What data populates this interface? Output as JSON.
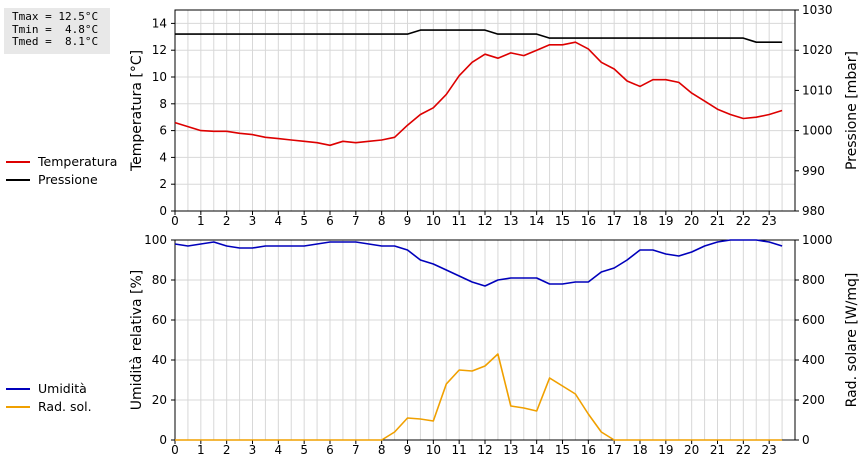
{
  "stats": {
    "tmax": "Tmax = 12.5°C",
    "tmin": "Tmin =  4.8°C",
    "tmed": "Tmed =  8.1°C"
  },
  "legend_top": [
    {
      "label": "Temperatura",
      "color": "#dd0000"
    },
    {
      "label": "Pressione",
      "color": "#000000"
    }
  ],
  "legend_bottom": [
    {
      "label": "Umidità",
      "color": "#0000bb"
    },
    {
      "label": "Rad. sol.",
      "color": "#f0a000"
    }
  ],
  "chart_data": [
    {
      "type": "line",
      "xlabel": "",
      "x_ticks": [
        "0",
        "1",
        "2",
        "3",
        "4",
        "5",
        "6",
        "7",
        "8",
        "9",
        "10",
        "11",
        "12",
        "13",
        "14",
        "15",
        "16",
        "17",
        "18",
        "19",
        "20",
        "21",
        "22",
        "23"
      ],
      "xlim": [
        0,
        24
      ],
      "grid": true,
      "left_axis": {
        "label": "Temperatura [°C]",
        "ylim": [
          0,
          15
        ],
        "ticks": [
          0,
          2,
          4,
          6,
          8,
          10,
          12,
          14
        ]
      },
      "right_axis": {
        "label": "Pressione [mbar]",
        "ylim": [
          980,
          1030
        ],
        "ticks": [
          980,
          990,
          1000,
          1010,
          1020,
          1030
        ]
      },
      "series": [
        {
          "name": "Temperatura",
          "axis": "left",
          "color": "#dd0000",
          "x": [
            0,
            0.5,
            1,
            1.5,
            2,
            2.5,
            3,
            3.5,
            4,
            4.5,
            5,
            5.5,
            6,
            6.5,
            7,
            7.5,
            8,
            8.5,
            9,
            9.5,
            10,
            10.5,
            11,
            11.5,
            12,
            12.5,
            13,
            13.5,
            14,
            14.5,
            15,
            15.5,
            16,
            16.5,
            17,
            17.5,
            18,
            18.5,
            19,
            19.5,
            20,
            20.5,
            21,
            21.5,
            22,
            22.5,
            23,
            23.5
          ],
          "values": [
            6.6,
            6.3,
            6.0,
            5.95,
            5.95,
            5.8,
            5.7,
            5.5,
            5.4,
            5.3,
            5.2,
            5.1,
            4.9,
            5.2,
            5.1,
            5.2,
            5.3,
            5.5,
            6.4,
            7.2,
            7.7,
            8.7,
            10.1,
            11.1,
            11.7,
            11.4,
            11.8,
            11.6,
            12.0,
            12.4,
            12.4,
            12.6,
            12.1,
            11.1,
            10.6,
            9.7,
            9.3,
            9.8,
            9.8,
            9.6,
            8.8,
            8.2,
            7.6,
            7.2,
            6.9,
            7.0,
            7.2,
            7.5
          ]
        },
        {
          "name": "Pressione",
          "axis": "right",
          "color": "#000000",
          "x": [
            0,
            9.0,
            9.5,
            12.0,
            12.5,
            14.0,
            14.5,
            22.0,
            22.5,
            23.5
          ],
          "values": [
            1024.0,
            1024.0,
            1025.0,
            1025.0,
            1024.0,
            1024.0,
            1023.0,
            1023.0,
            1022.0,
            1022.0
          ]
        }
      ]
    },
    {
      "type": "line",
      "xlabel": "",
      "x_ticks": [
        "0",
        "1",
        "2",
        "3",
        "4",
        "5",
        "6",
        "7",
        "8",
        "9",
        "10",
        "11",
        "12",
        "13",
        "14",
        "15",
        "16",
        "17",
        "18",
        "19",
        "20",
        "21",
        "22",
        "23"
      ],
      "xlim": [
        0,
        24
      ],
      "grid": true,
      "left_axis": {
        "label": "Umidità relativa [%]",
        "ylim": [
          0,
          100
        ],
        "ticks": [
          0,
          20,
          40,
          60,
          80,
          100
        ]
      },
      "right_axis": {
        "label": "Rad. solare [W/mq]",
        "ylim": [
          0,
          1000
        ],
        "ticks": [
          0,
          200,
          400,
          600,
          800,
          1000
        ]
      },
      "series": [
        {
          "name": "Umidità",
          "axis": "left",
          "color": "#0000bb",
          "x": [
            0,
            0.5,
            1,
            1.5,
            2,
            2.5,
            3,
            3.5,
            4,
            4.5,
            5,
            5.5,
            6,
            6.5,
            7,
            7.5,
            8,
            8.5,
            9,
            9.5,
            10,
            10.5,
            11,
            11.5,
            12,
            12.5,
            13,
            13.5,
            14,
            14.5,
            15,
            15.5,
            16,
            16.5,
            17,
            17.5,
            18,
            18.5,
            19,
            19.5,
            20,
            20.5,
            21,
            21.5,
            22,
            22.5,
            23,
            23.5
          ],
          "values": [
            98,
            97,
            98,
            99,
            97,
            96,
            96,
            97,
            97,
            97,
            97,
            98,
            99,
            99,
            99,
            98,
            97,
            97,
            95,
            90,
            88,
            85,
            82,
            79,
            77,
            80,
            81,
            81,
            81,
            78,
            78,
            79,
            79,
            84,
            86,
            90,
            95,
            95,
            93,
            92,
            94,
            97,
            99,
            100,
            100,
            100,
            99,
            97
          ]
        },
        {
          "name": "Rad. sol.",
          "axis": "right",
          "color": "#f0a000",
          "x": [
            0,
            0.5,
            1,
            1.5,
            2,
            2.5,
            3,
            3.5,
            4,
            4.5,
            5,
            5.5,
            6,
            6.5,
            7,
            7.5,
            8,
            8.5,
            9,
            9.5,
            10,
            10.5,
            11,
            11.5,
            12,
            12.5,
            13,
            13.5,
            14,
            14.5,
            15,
            15.5,
            16,
            16.5,
            17,
            17.5,
            18,
            18.5,
            19,
            19.5,
            20,
            20.5,
            21,
            21.5,
            22,
            22.5,
            23,
            23.5
          ],
          "values": [
            0,
            0,
            0,
            0,
            0,
            0,
            0,
            0,
            0,
            0,
            0,
            0,
            0,
            0,
            0,
            0,
            0,
            40,
            110,
            105,
            95,
            280,
            350,
            345,
            370,
            430,
            170,
            160,
            145,
            310,
            270,
            230,
            130,
            40,
            0,
            0,
            0,
            0,
            0,
            0,
            0,
            0,
            0,
            0,
            0,
            0,
            0,
            0
          ]
        }
      ]
    }
  ]
}
